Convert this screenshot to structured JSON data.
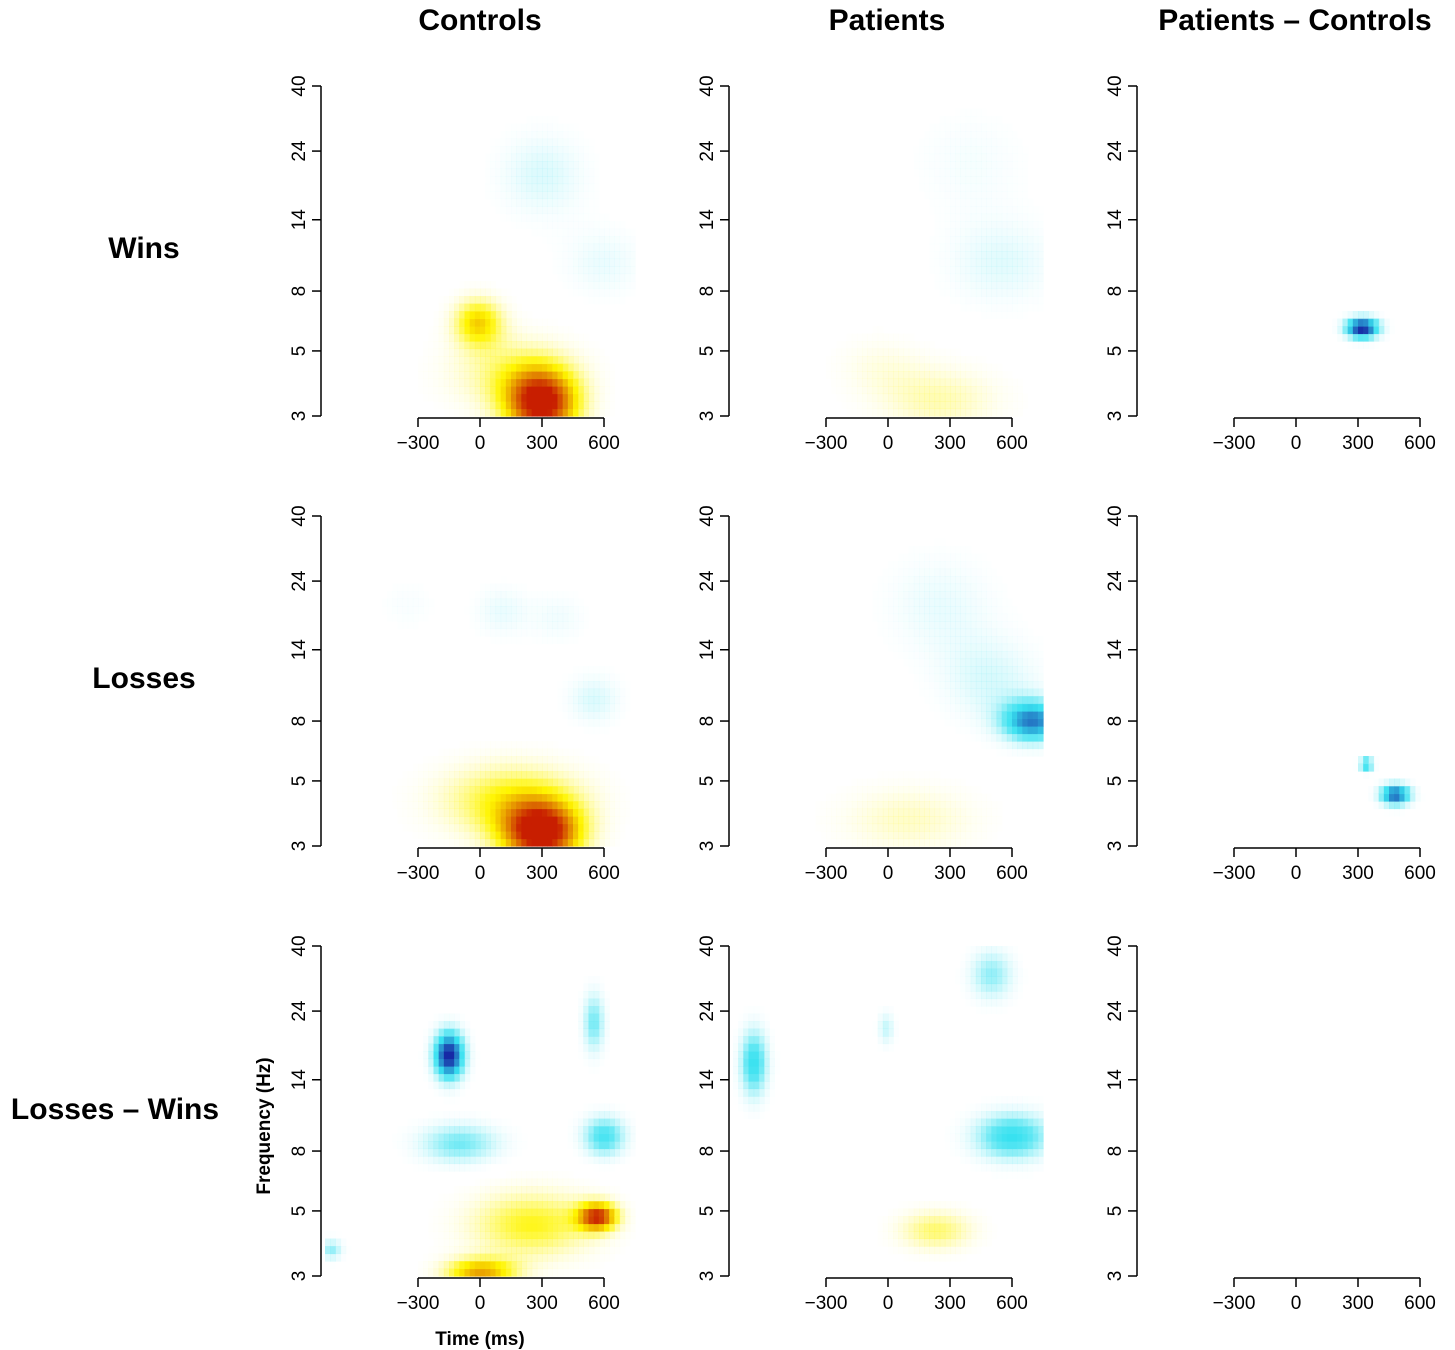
{
  "columns": [
    "Controls",
    "Patients",
    "Patients – Controls"
  ],
  "rows": [
    "Wins",
    "Losses",
    "Losses – Wins"
  ],
  "colors": {
    "positive": "#ffe000",
    "positive_strong": "#c81e00",
    "negative": "#40e0f0",
    "negative_strong": "#1a1aa0"
  },
  "chart_data": {
    "type": "heatmap",
    "xlabel": "Time (ms)",
    "ylabel": "Frequency (Hz)",
    "x_ticks": [
      -300,
      0,
      300,
      600
    ],
    "x_tick_labels": [
      "−300",
      "0",
      "300",
      "600"
    ],
    "y_ticks": [
      3,
      5,
      8,
      14,
      24,
      40
    ],
    "y_scale": "log",
    "xlim": [
      -750,
      750
    ],
    "ylim": [
      3,
      40
    ],
    "panels": [
      {
        "row": "Wins",
        "column": "Controls",
        "blobs": [
          {
            "t": 300,
            "f": 3.3,
            "st": 130,
            "sf": 0.2,
            "a": 1.0
          },
          {
            "t": -10,
            "f": 6.3,
            "st": 90,
            "sf": 0.14,
            "a": 0.55
          },
          {
            "t": 150,
            "f": 4.2,
            "st": 230,
            "sf": 0.22,
            "a": 0.3
          },
          {
            "t": 300,
            "f": 20,
            "st": 160,
            "sf": 0.25,
            "a": -0.2
          },
          {
            "t": 600,
            "f": 10,
            "st": 150,
            "sf": 0.2,
            "a": -0.15
          }
        ]
      },
      {
        "row": "Wins",
        "column": "Patients",
        "blobs": [
          {
            "t": 250,
            "f": 3.4,
            "st": 220,
            "sf": 0.2,
            "a": 0.25
          },
          {
            "t": -50,
            "f": 4.5,
            "st": 160,
            "sf": 0.18,
            "a": 0.12
          },
          {
            "t": 550,
            "f": 10,
            "st": 200,
            "sf": 0.25,
            "a": -0.18
          },
          {
            "t": 400,
            "f": 22,
            "st": 200,
            "sf": 0.3,
            "a": -0.1
          }
        ]
      },
      {
        "row": "Wins",
        "column": "Patients – Controls",
        "blobs": [
          {
            "t": 320,
            "f": 6.0,
            "st": 60,
            "sf": 0.06,
            "a": -1.0
          }
        ]
      },
      {
        "row": "Losses",
        "column": "Controls",
        "blobs": [
          {
            "t": 300,
            "f": 3.3,
            "st": 140,
            "sf": 0.18,
            "a": 1.0
          },
          {
            "t": 150,
            "f": 4.3,
            "st": 260,
            "sf": 0.22,
            "a": 0.45
          },
          {
            "t": 550,
            "f": 9.5,
            "st": 100,
            "sf": 0.15,
            "a": -0.2
          },
          {
            "t": 100,
            "f": 19,
            "st": 100,
            "sf": 0.15,
            "a": -0.15
          },
          {
            "t": 380,
            "f": 18,
            "st": 100,
            "sf": 0.15,
            "a": -0.12
          },
          {
            "t": -350,
            "f": 20,
            "st": 100,
            "sf": 0.15,
            "a": -0.08
          }
        ]
      },
      {
        "row": "Losses",
        "column": "Patients",
        "blobs": [
          {
            "t": 700,
            "f": 8.0,
            "st": 110,
            "sf": 0.12,
            "a": -0.75
          },
          {
            "t": 500,
            "f": 11,
            "st": 180,
            "sf": 0.25,
            "a": -0.2
          },
          {
            "t": 250,
            "f": 20,
            "st": 200,
            "sf": 0.3,
            "a": -0.15
          },
          {
            "t": 100,
            "f": 3.7,
            "st": 250,
            "sf": 0.2,
            "a": 0.22
          }
        ]
      },
      {
        "row": "Losses",
        "column": "Patients – Controls",
        "blobs": [
          {
            "t": 480,
            "f": 4.5,
            "st": 55,
            "sf": 0.06,
            "a": -0.85
          },
          {
            "t": 340,
            "f": 5.7,
            "st": 25,
            "sf": 0.04,
            "a": -0.6
          }
        ]
      },
      {
        "row": "Losses – Wins",
        "column": "Controls",
        "blobs": [
          {
            "t": -150,
            "f": 17,
            "st": 55,
            "sf": 0.14,
            "a": -1.0
          },
          {
            "t": -100,
            "f": 8.5,
            "st": 150,
            "sf": 0.12,
            "a": -0.4
          },
          {
            "t": 600,
            "f": 9.0,
            "st": 80,
            "sf": 0.12,
            "a": -0.5
          },
          {
            "t": 550,
            "f": 22,
            "st": 40,
            "sf": 0.18,
            "a": -0.4
          },
          {
            "t": 250,
            "f": 4.5,
            "st": 230,
            "sf": 0.2,
            "a": 0.45
          },
          {
            "t": 570,
            "f": 4.8,
            "st": 70,
            "sf": 0.08,
            "a": 0.85
          },
          {
            "t": 0,
            "f": 3.1,
            "st": 130,
            "sf": 0.08,
            "a": 0.65
          },
          {
            "t": -720,
            "f": 3.7,
            "st": 40,
            "sf": 0.06,
            "a": -0.35
          }
        ]
      },
      {
        "row": "Losses – Wins",
        "column": "Patients",
        "blobs": [
          {
            "t": -650,
            "f": 16,
            "st": 50,
            "sf": 0.2,
            "a": -0.55
          },
          {
            "t": 600,
            "f": 9.0,
            "st": 140,
            "sf": 0.14,
            "a": -0.55
          },
          {
            "t": 500,
            "f": 32,
            "st": 80,
            "sf": 0.15,
            "a": -0.35
          },
          {
            "t": 230,
            "f": 4.3,
            "st": 140,
            "sf": 0.12,
            "a": 0.35
          },
          {
            "t": -10,
            "f": 21,
            "st": 30,
            "sf": 0.1,
            "a": -0.25
          }
        ]
      },
      {
        "row": "Losses – Wins",
        "column": "Patients – Controls",
        "blobs": []
      }
    ]
  }
}
